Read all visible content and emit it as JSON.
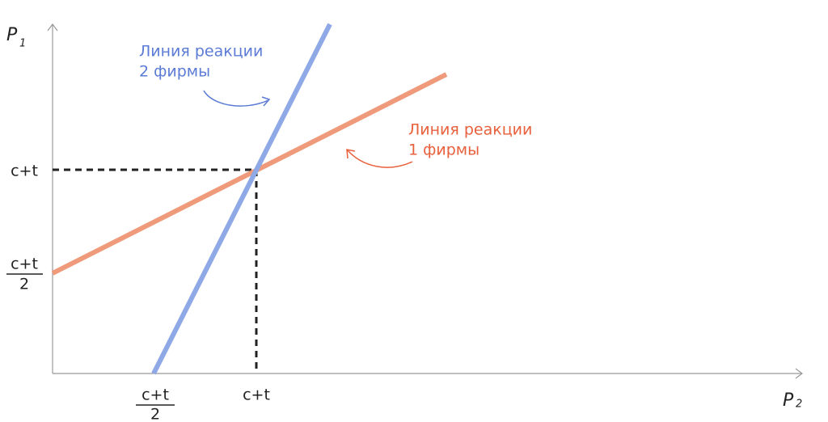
{
  "axes": {
    "y_label": {
      "letter": "P",
      "subscript": "1"
    },
    "x_label": {
      "letter": "P",
      "subscript": "2"
    }
  },
  "y_ticks": {
    "upper": "c+t",
    "lower": {
      "numerator": "c+t",
      "denominator": "2"
    }
  },
  "x_ticks": {
    "left": {
      "numerator": "c+t",
      "denominator": "2"
    },
    "right": "c+t"
  },
  "annotations": [
    {
      "lines": [
        "Линия реакции",
        "2 фирмы"
      ]
    },
    {
      "lines": [
        "Линия реакции",
        "1 фирмы"
      ]
    }
  ]
}
